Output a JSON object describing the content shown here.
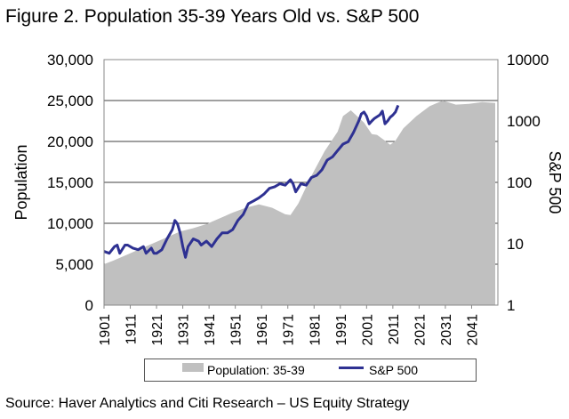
{
  "figure_title": "Figure 2. Population 35-39 Years Old vs. S&P 500",
  "source": "Source: Haver Analytics and Citi Research – US Equity Strategy",
  "colors": {
    "population": "#c0c0c0",
    "sp500": "#2e3192",
    "grid": "#000000"
  },
  "chart_data": {
    "type": "area",
    "title": "Figure 2. Population 35-39 Years Old vs. S&P 500",
    "xlabel": "",
    "ylabel": "Population",
    "y2label": "S&P 500",
    "x_ticks": [
      "1901",
      "1911",
      "1921",
      "1931",
      "1941",
      "1951",
      "1961",
      "1971",
      "1981",
      "1991",
      "2001",
      "2011",
      "2021",
      "2031",
      "2041"
    ],
    "xlim": [
      1901,
      2051
    ],
    "ylim": [
      0,
      30000
    ],
    "y_ticks": [
      "0",
      "5,000",
      "10,000",
      "15,000",
      "20,000",
      "25,000",
      "30,000"
    ],
    "y2lim": [
      1,
      10000
    ],
    "y2_scale": "log",
    "y2_ticks": [
      "1",
      "10",
      "100",
      "1000",
      "10000"
    ],
    "legend_position": "bottom",
    "series": [
      {
        "name": "Population: 35-39",
        "kind": "area",
        "axis": "left",
        "x": [
          1901,
          1905,
          1910,
          1915,
          1920,
          1925,
          1930,
          1935,
          1940,
          1945,
          1950,
          1955,
          1960,
          1965,
          1970,
          1972,
          1975,
          1980,
          1985,
          1990,
          1992,
          1995,
          2000,
          2003,
          2005,
          2008,
          2010,
          2012,
          2015,
          2020,
          2025,
          2030,
          2035,
          2040,
          2045,
          2050
        ],
        "values": [
          5000,
          5500,
          6200,
          6900,
          7600,
          8300,
          9000,
          9400,
          9900,
          10600,
          11300,
          11900,
          12300,
          11900,
          11100,
          11000,
          12400,
          15800,
          18800,
          21200,
          23100,
          23800,
          22300,
          20900,
          20800,
          20100,
          19600,
          20100,
          21600,
          23100,
          24300,
          25000,
          24500,
          24600,
          24800,
          24700
        ]
      },
      {
        "name": "S&P 500",
        "kind": "line",
        "axis": "right",
        "x": [
          1901,
          1903,
          1905,
          1906,
          1907,
          1909,
          1910,
          1912,
          1914,
          1916,
          1917,
          1919,
          1920,
          1921,
          1923,
          1925,
          1927,
          1928,
          1929,
          1930,
          1931,
          1932,
          1933,
          1935,
          1937,
          1938,
          1940,
          1942,
          1944,
          1946,
          1948,
          1950,
          1952,
          1954,
          1956,
          1958,
          1960,
          1962,
          1964,
          1966,
          1968,
          1970,
          1972,
          1973,
          1974,
          1976,
          1978,
          1980,
          1982,
          1984,
          1986,
          1988,
          1990,
          1992,
          1994,
          1996,
          1998,
          1999,
          2000,
          2001,
          2002,
          2003,
          2004,
          2006,
          2007,
          2008,
          2009,
          2010,
          2011,
          2012,
          2013
        ],
        "values": [
          7.5,
          7,
          9,
          9.5,
          7,
          9.5,
          9.5,
          8.5,
          8,
          9,
          7,
          8.5,
          7,
          7,
          8,
          12,
          17,
          24,
          21,
          15,
          9,
          6,
          9,
          12,
          11,
          9.5,
          11,
          9,
          12,
          15,
          15,
          17,
          24,
          30,
          45,
          50,
          56,
          65,
          80,
          85,
          95,
          90,
          110,
          95,
          70,
          95,
          90,
          120,
          130,
          160,
          230,
          260,
          330,
          420,
          460,
          650,
          1000,
          1300,
          1400,
          1200,
          900,
          1000,
          1100,
          1250,
          1450,
          900,
          1000,
          1150,
          1250,
          1400,
          1800
        ]
      }
    ]
  }
}
